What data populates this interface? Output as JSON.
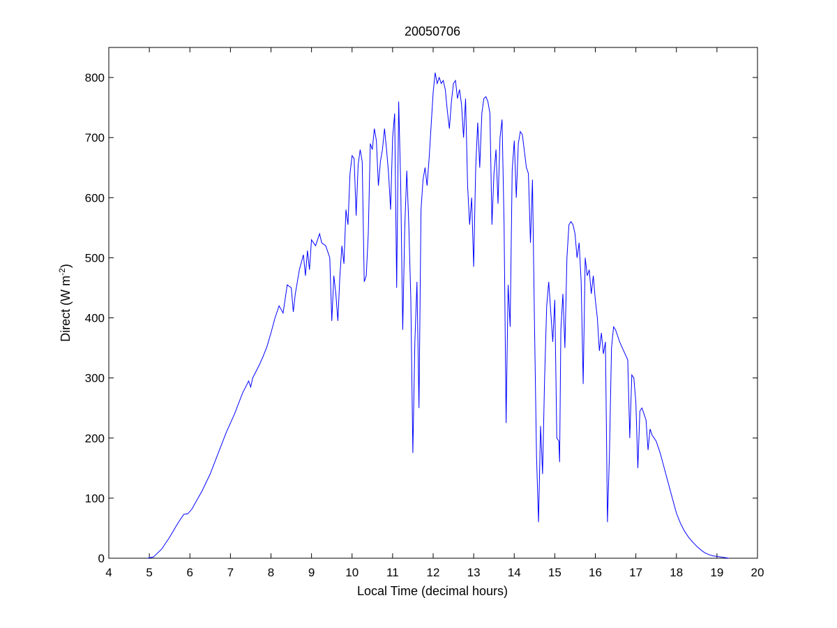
{
  "chart_data": {
    "type": "line",
    "title": "20050706",
    "xlabel": "Local Time (decimal hours)",
    "ylabel_main": "Direct (W m",
    "ylabel_sup": "-2",
    "ylabel_close": ")",
    "xlim": [
      4,
      20
    ],
    "ylim": [
      0,
      850
    ],
    "xticks": [
      4,
      5,
      6,
      7,
      8,
      9,
      10,
      11,
      12,
      13,
      14,
      15,
      16,
      17,
      18,
      19,
      20
    ],
    "yticks": [
      0,
      100,
      200,
      300,
      400,
      500,
      600,
      700,
      800
    ],
    "grid": false,
    "line_color": "#0000ff",
    "series": [
      {
        "points": [
          [
            4.95,
            0
          ],
          [
            5.1,
            2
          ],
          [
            5.3,
            15
          ],
          [
            5.5,
            35
          ],
          [
            5.7,
            58
          ],
          [
            5.85,
            73
          ],
          [
            5.95,
            74
          ],
          [
            6.05,
            82
          ],
          [
            6.3,
            112
          ],
          [
            6.5,
            140
          ],
          [
            6.7,
            175
          ],
          [
            6.9,
            210
          ],
          [
            7.1,
            240
          ],
          [
            7.3,
            275
          ],
          [
            7.45,
            295
          ],
          [
            7.5,
            285
          ],
          [
            7.55,
            300
          ],
          [
            7.7,
            320
          ],
          [
            7.8,
            335
          ],
          [
            7.9,
            352
          ],
          [
            8.0,
            375
          ],
          [
            8.1,
            400
          ],
          [
            8.2,
            420
          ],
          [
            8.3,
            408
          ],
          [
            8.4,
            455
          ],
          [
            8.5,
            450
          ],
          [
            8.55,
            410
          ],
          [
            8.6,
            440
          ],
          [
            8.7,
            480
          ],
          [
            8.8,
            505
          ],
          [
            8.85,
            470
          ],
          [
            8.9,
            512
          ],
          [
            8.95,
            480
          ],
          [
            9.0,
            530
          ],
          [
            9.1,
            520
          ],
          [
            9.2,
            540
          ],
          [
            9.25,
            525
          ],
          [
            9.35,
            520
          ],
          [
            9.45,
            500
          ],
          [
            9.5,
            395
          ],
          [
            9.55,
            470
          ],
          [
            9.6,
            440
          ],
          [
            9.65,
            395
          ],
          [
            9.7,
            470
          ],
          [
            9.75,
            520
          ],
          [
            9.8,
            490
          ],
          [
            9.85,
            580
          ],
          [
            9.9,
            555
          ],
          [
            9.95,
            640
          ],
          [
            10.0,
            670
          ],
          [
            10.05,
            665
          ],
          [
            10.1,
            570
          ],
          [
            10.15,
            655
          ],
          [
            10.2,
            680
          ],
          [
            10.25,
            660
          ],
          [
            10.3,
            460
          ],
          [
            10.35,
            470
          ],
          [
            10.4,
            540
          ],
          [
            10.45,
            690
          ],
          [
            10.5,
            680
          ],
          [
            10.55,
            715
          ],
          [
            10.6,
            695
          ],
          [
            10.65,
            620
          ],
          [
            10.7,
            660
          ],
          [
            10.75,
            680
          ],
          [
            10.8,
            715
          ],
          [
            10.85,
            680
          ],
          [
            10.9,
            640
          ],
          [
            10.95,
            580
          ],
          [
            11.0,
            700
          ],
          [
            11.05,
            740
          ],
          [
            11.1,
            450
          ],
          [
            11.15,
            760
          ],
          [
            11.2,
            620
          ],
          [
            11.25,
            380
          ],
          [
            11.3,
            550
          ],
          [
            11.35,
            645
          ],
          [
            11.4,
            555
          ],
          [
            11.45,
            430
          ],
          [
            11.5,
            175
          ],
          [
            11.55,
            360
          ],
          [
            11.6,
            460
          ],
          [
            11.65,
            250
          ],
          [
            11.7,
            580
          ],
          [
            11.75,
            630
          ],
          [
            11.8,
            650
          ],
          [
            11.85,
            620
          ],
          [
            11.9,
            665
          ],
          [
            11.95,
            720
          ],
          [
            12.0,
            775
          ],
          [
            12.05,
            808
          ],
          [
            12.1,
            790
          ],
          [
            12.15,
            800
          ],
          [
            12.2,
            790
          ],
          [
            12.25,
            795
          ],
          [
            12.3,
            780
          ],
          [
            12.35,
            745
          ],
          [
            12.4,
            715
          ],
          [
            12.45,
            760
          ],
          [
            12.5,
            790
          ],
          [
            12.55,
            795
          ],
          [
            12.6,
            765
          ],
          [
            12.65,
            780
          ],
          [
            12.7,
            755
          ],
          [
            12.75,
            700
          ],
          [
            12.8,
            765
          ],
          [
            12.85,
            620
          ],
          [
            12.9,
            555
          ],
          [
            12.95,
            600
          ],
          [
            13.0,
            485
          ],
          [
            13.05,
            650
          ],
          [
            13.1,
            725
          ],
          [
            13.15,
            650
          ],
          [
            13.2,
            740
          ],
          [
            13.25,
            765
          ],
          [
            13.3,
            768
          ],
          [
            13.35,
            760
          ],
          [
            13.4,
            740
          ],
          [
            13.45,
            555
          ],
          [
            13.5,
            640
          ],
          [
            13.55,
            680
          ],
          [
            13.6,
            590
          ],
          [
            13.65,
            700
          ],
          [
            13.7,
            730
          ],
          [
            13.75,
            555
          ],
          [
            13.8,
            225
          ],
          [
            13.85,
            455
          ],
          [
            13.9,
            385
          ],
          [
            13.95,
            645
          ],
          [
            14.0,
            695
          ],
          [
            14.05,
            600
          ],
          [
            14.1,
            690
          ],
          [
            14.15,
            710
          ],
          [
            14.2,
            705
          ],
          [
            14.3,
            650
          ],
          [
            14.35,
            640
          ],
          [
            14.4,
            525
          ],
          [
            14.45,
            630
          ],
          [
            14.5,
            390
          ],
          [
            14.55,
            170
          ],
          [
            14.6,
            60
          ],
          [
            14.65,
            220
          ],
          [
            14.7,
            140
          ],
          [
            14.75,
            300
          ],
          [
            14.8,
            420
          ],
          [
            14.85,
            460
          ],
          [
            14.9,
            410
          ],
          [
            14.95,
            360
          ],
          [
            15.0,
            430
          ],
          [
            15.05,
            200
          ],
          [
            15.1,
            195
          ],
          [
            15.12,
            160
          ],
          [
            15.15,
            380
          ],
          [
            15.2,
            440
          ],
          [
            15.25,
            350
          ],
          [
            15.3,
            500
          ],
          [
            15.35,
            555
          ],
          [
            15.4,
            560
          ],
          [
            15.45,
            555
          ],
          [
            15.5,
            540
          ],
          [
            15.55,
            500
          ],
          [
            15.6,
            525
          ],
          [
            15.65,
            460
          ],
          [
            15.7,
            290
          ],
          [
            15.75,
            500
          ],
          [
            15.8,
            470
          ],
          [
            15.85,
            480
          ],
          [
            15.9,
            440
          ],
          [
            15.95,
            470
          ],
          [
            16.0,
            430
          ],
          [
            16.05,
            400
          ],
          [
            16.1,
            345
          ],
          [
            16.15,
            375
          ],
          [
            16.2,
            340
          ],
          [
            16.25,
            360
          ],
          [
            16.3,
            60
          ],
          [
            16.35,
            175
          ],
          [
            16.4,
            350
          ],
          [
            16.45,
            385
          ],
          [
            16.5,
            380
          ],
          [
            16.6,
            360
          ],
          [
            16.7,
            345
          ],
          [
            16.8,
            330
          ],
          [
            16.85,
            200
          ],
          [
            16.9,
            305
          ],
          [
            16.95,
            300
          ],
          [
            17.0,
            260
          ],
          [
            17.05,
            150
          ],
          [
            17.1,
            245
          ],
          [
            17.15,
            250
          ],
          [
            17.2,
            240
          ],
          [
            17.25,
            230
          ],
          [
            17.3,
            180
          ],
          [
            17.35,
            215
          ],
          [
            17.4,
            205
          ],
          [
            17.5,
            195
          ],
          [
            17.6,
            175
          ],
          [
            17.7,
            150
          ],
          [
            17.8,
            125
          ],
          [
            17.9,
            100
          ],
          [
            18.0,
            75
          ],
          [
            18.1,
            58
          ],
          [
            18.2,
            45
          ],
          [
            18.3,
            35
          ],
          [
            18.4,
            27
          ],
          [
            18.5,
            20
          ],
          [
            18.6,
            14
          ],
          [
            18.7,
            9
          ],
          [
            18.8,
            6
          ],
          [
            18.9,
            4
          ],
          [
            19.0,
            3
          ],
          [
            19.1,
            2
          ],
          [
            19.2,
            1
          ],
          [
            19.3,
            0
          ]
        ]
      }
    ]
  }
}
